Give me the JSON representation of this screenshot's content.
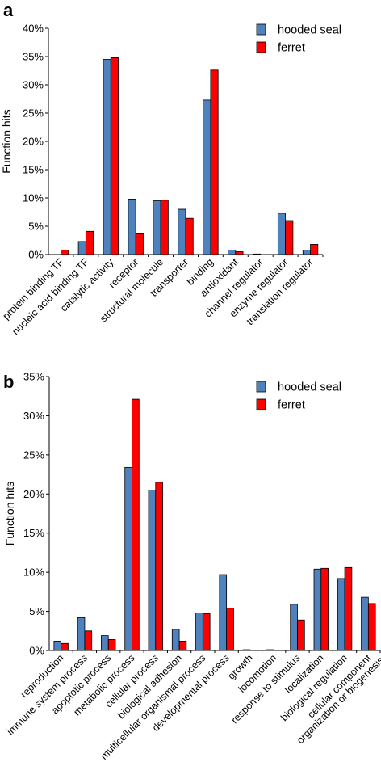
{
  "colors": {
    "hooded_seal": "#4f81bd",
    "ferret": "#ff0000"
  },
  "chart_data": [
    {
      "type": "bar",
      "panel": "a",
      "ylabel": "Function hits",
      "ylim": [
        0,
        40
      ],
      "yticks": [
        "0%",
        "5%",
        "10%",
        "15%",
        "20%",
        "25%",
        "30%",
        "35%",
        "40%"
      ],
      "legend_position": "top-right",
      "categories": [
        "protein binding TF",
        "nucleic acid binding TF",
        "catalytic activity",
        "receptor",
        "structural molecule",
        "transporter",
        "binding",
        "antioxidant",
        "channel regulator",
        "enzyme regulator",
        "translation regulator"
      ],
      "series": [
        {
          "name": "hooded seal",
          "values": [
            0,
            2.3,
            34.5,
            9.8,
            9.5,
            8.0,
            27.3,
            0.8,
            0.1,
            7.3,
            0.8
          ]
        },
        {
          "name": "ferret",
          "values": [
            0.8,
            4.1,
            34.8,
            3.8,
            9.6,
            6.4,
            32.6,
            0.5,
            0,
            6.0,
            1.8
          ]
        }
      ]
    },
    {
      "type": "bar",
      "panel": "b",
      "ylabel": "Function hits",
      "ylim": [
        0,
        35
      ],
      "yticks": [
        "0%",
        "5%",
        "10%",
        "15%",
        "20%",
        "25%",
        "30%",
        "35%"
      ],
      "legend_position": "top-right",
      "categories": [
        "reproduction",
        "immune system process",
        "apoptotic process",
        "metabolic process",
        "cellular process",
        "biological adhesion",
        "multicellular organismal process",
        "developmental process",
        "growth",
        "locomotion",
        "response to stimulus",
        "localization",
        "biological regulation",
        "cellular component organization or biogenesis"
      ],
      "series": [
        {
          "name": "hooded seal",
          "values": [
            1.2,
            4.2,
            1.9,
            23.4,
            20.5,
            2.7,
            4.8,
            9.7,
            0.1,
            0.1,
            5.9,
            10.4,
            9.2,
            6.8
          ]
        },
        {
          "name": "ferret",
          "values": [
            0.9,
            2.5,
            1.4,
            32.1,
            21.5,
            1.2,
            4.7,
            5.4,
            0,
            0,
            3.9,
            10.5,
            10.6,
            6.0
          ]
        }
      ]
    }
  ]
}
